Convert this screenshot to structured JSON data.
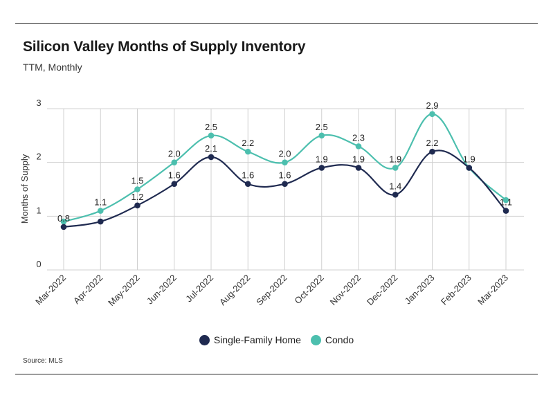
{
  "header": {
    "title": "Silicon Valley Months of Supply Inventory",
    "subtitle": "TTM, Monthly"
  },
  "footer": {
    "source": "Source: MLS"
  },
  "chart_data": {
    "type": "line",
    "title": "Silicon Valley Months of Supply Inventory",
    "subtitle": "TTM, Monthly",
    "xlabel": "",
    "ylabel": "Months of Supply",
    "ylim": [
      0,
      3
    ],
    "yticks": [
      0,
      1,
      2,
      3
    ],
    "grid": true,
    "smooth": true,
    "legend_position": "bottom",
    "categories": [
      "Mar-2022",
      "Apr-2022",
      "May-2022",
      "Jun-2022",
      "Jul-2022",
      "Aug-2022",
      "Sep-2022",
      "Oct-2022",
      "Nov-2022",
      "Dec-2022",
      "Jan-2023",
      "Feb-2023",
      "Mar-2023"
    ],
    "series": [
      {
        "name": "Single-Family Home",
        "color": "#1f2a50",
        "values": [
          0.8,
          0.9,
          1.2,
          1.6,
          2.1,
          1.6,
          1.6,
          1.9,
          1.9,
          1.4,
          2.2,
          1.9,
          1.1
        ],
        "labels": [
          "0.8",
          "",
          "1.2",
          "1.6",
          "2.1",
          "1.6",
          "1.6",
          "1.9",
          "1.9",
          "1.4",
          "2.2",
          "",
          "1.1"
        ]
      },
      {
        "name": "Condo",
        "color": "#4cbfae",
        "values": [
          0.9,
          1.1,
          1.5,
          2.0,
          2.5,
          2.2,
          2.0,
          2.5,
          2.3,
          1.9,
          2.9,
          1.9,
          1.3
        ],
        "labels": [
          "",
          "1.1",
          "1.5",
          "2.0",
          "2.5",
          "2.2",
          "2.0",
          "2.5",
          "2.3",
          "1.9",
          "2.9",
          "1.9",
          ""
        ]
      }
    ]
  }
}
